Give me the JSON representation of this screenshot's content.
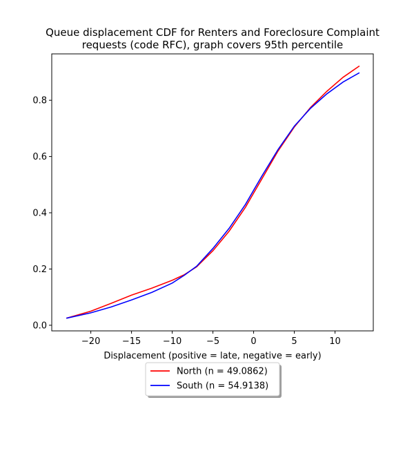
{
  "chart_data": {
    "type": "line",
    "title_lines": [
      "Queue displacement CDF for Renters and Foreclosure Complaint",
      "requests (code RFC), graph covers 95th percentile"
    ],
    "xlabel": "Displacement (positive = late, negative = early)",
    "ylabel": "",
    "xlim": [
      -24.8,
      14.7
    ],
    "ylim": [
      -0.02,
      0.965
    ],
    "xticks": [
      -20,
      -15,
      -10,
      -5,
      0,
      5,
      10
    ],
    "xtick_labels": [
      "−20",
      "−15",
      "−10",
      "−5",
      "0",
      "5",
      "10"
    ],
    "yticks": [
      0.0,
      0.2,
      0.4,
      0.6,
      0.8
    ],
    "ytick_labels": [
      "0.0",
      "0.2",
      "0.4",
      "0.6",
      "0.8"
    ],
    "grid": false,
    "legend_position": "below plot, centered",
    "series": [
      {
        "name": "North (n = 49.0862)",
        "color": "#ff0000",
        "x": [
          -23,
          -20,
          -17.5,
          -15,
          -12.5,
          -10,
          -8.5,
          -7,
          -5,
          -3,
          -1,
          0,
          1,
          3,
          5,
          7,
          9,
          11,
          13
        ],
        "y": [
          0.025,
          0.05,
          0.078,
          0.107,
          0.132,
          0.16,
          0.18,
          0.208,
          0.265,
          0.335,
          0.42,
          0.47,
          0.52,
          0.62,
          0.705,
          0.775,
          0.832,
          0.882,
          0.922
        ]
      },
      {
        "name": "South (n = 54.9138)",
        "color": "#0000ff",
        "x": [
          -23,
          -20,
          -17.5,
          -15,
          -12.5,
          -10,
          -8.5,
          -7,
          -5,
          -3,
          -1,
          0,
          1,
          3,
          5,
          7,
          9,
          11,
          13
        ],
        "y": [
          0.025,
          0.044,
          0.065,
          0.09,
          0.117,
          0.15,
          0.178,
          0.21,
          0.273,
          0.345,
          0.43,
          0.48,
          0.53,
          0.625,
          0.708,
          0.772,
          0.823,
          0.865,
          0.898
        ]
      }
    ]
  }
}
